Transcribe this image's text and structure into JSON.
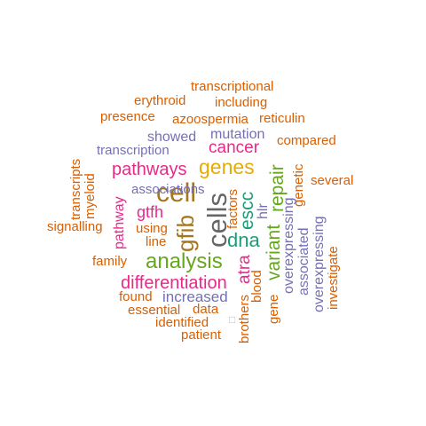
{
  "words": [
    {
      "text": "cells",
      "color": "#666666"
    },
    {
      "text": "cell",
      "color": "#a6761d"
    },
    {
      "text": "gfib",
      "color": "#a6761d"
    },
    {
      "text": "genes",
      "color": "#e6ab02"
    },
    {
      "text": "analysis",
      "color": "#66a61e"
    },
    {
      "text": "differentiation",
      "color": "#e7298a"
    },
    {
      "text": "pathways",
      "color": "#e7298a"
    },
    {
      "text": "cancer",
      "color": "#e7298a"
    },
    {
      "text": "repair",
      "color": "#66a61e"
    },
    {
      "text": "variant",
      "color": "#66a61e"
    },
    {
      "text": "dna",
      "color": "#1b9e77"
    },
    {
      "text": "escc",
      "color": "#1b9e77"
    },
    {
      "text": "gtfh",
      "color": "#e7298a"
    },
    {
      "text": "pathway",
      "color": "#e7298a"
    },
    {
      "text": "atra",
      "color": "#e7298a"
    },
    {
      "text": "mutation",
      "color": "#7570b3"
    },
    {
      "text": "showed",
      "color": "#7570b3"
    },
    {
      "text": "transcription",
      "color": "#7570b3"
    },
    {
      "text": "increased",
      "color": "#7570b3"
    },
    {
      "text": "risk",
      "color": "#7570b3"
    },
    {
      "text": "associations",
      "color": "#7570b3"
    },
    {
      "text": "associated",
      "color": "#7570b3"
    },
    {
      "text": "overexpressing",
      "color": "#7570b3"
    },
    {
      "text": "hlr",
      "color": "#7570b3"
    },
    {
      "text": "transcriptional",
      "color": "#d95f02"
    },
    {
      "text": "erythroid",
      "color": "#d95f02"
    },
    {
      "text": "including",
      "color": "#d95f02"
    },
    {
      "text": "presence",
      "color": "#d95f02"
    },
    {
      "text": "azoospermia",
      "color": "#d95f02"
    },
    {
      "text": "reticulin",
      "color": "#d95f02"
    },
    {
      "text": "compared",
      "color": "#d95f02"
    },
    {
      "text": "several",
      "color": "#d95f02"
    },
    {
      "text": "genetic",
      "color": "#d95f02"
    },
    {
      "text": "investigate",
      "color": "#d95f02"
    },
    {
      "text": "transcripts",
      "color": "#d95f02"
    },
    {
      "text": "myeloid",
      "color": "#d95f02"
    },
    {
      "text": "signalling",
      "color": "#d95f02"
    },
    {
      "text": "using",
      "color": "#d95f02"
    },
    {
      "text": "line",
      "color": "#d95f02"
    },
    {
      "text": "family",
      "color": "#d95f02"
    },
    {
      "text": "factors",
      "color": "#d95f02"
    },
    {
      "text": "found",
      "color": "#d95f02"
    },
    {
      "text": "essential",
      "color": "#d95f02"
    },
    {
      "text": "data",
      "color": "#d95f02"
    },
    {
      "text": "identified",
      "color": "#d95f02"
    },
    {
      "text": "patient",
      "color": "#d95f02"
    },
    {
      "text": "brothers",
      "color": "#d95f02"
    },
    {
      "text": "blood",
      "color": "#d95f02"
    },
    {
      "text": "gene",
      "color": "#d95f02"
    }
  ]
}
